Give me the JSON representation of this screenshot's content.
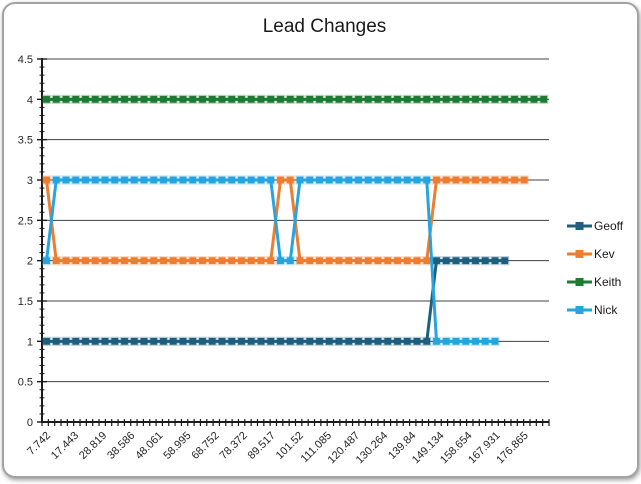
{
  "chart_data": {
    "type": "line",
    "title": "Lead Changes",
    "xlabel": "",
    "ylabel": "",
    "ylim": [
      0,
      4.5
    ],
    "grid": true,
    "legend_position": "right",
    "y_ticks": [
      0,
      0.5,
      1,
      1.5,
      2,
      2.5,
      3,
      3.5,
      4,
      4.5
    ],
    "y_tick_labels": [
      "0",
      "0.5",
      "1",
      "1.5",
      "2",
      "2.5",
      "3",
      "3.5",
      "4",
      "4.5"
    ],
    "x_tick_labels": [
      "7.742",
      "17.443",
      "28.819",
      "38.586",
      "48.061",
      "58.995",
      "68.752",
      "78.372",
      "89.517",
      "101.52",
      "111.085",
      "120.487",
      "130.264",
      "139.84",
      "149.134",
      "158.654",
      "167.931",
      "176.865"
    ],
    "series": [
      {
        "name": "Geoff",
        "color": "#1E5F7E",
        "values": [
          1,
          1,
          1,
          1,
          1,
          1,
          1,
          1,
          1,
          1,
          1,
          1,
          1,
          1,
          1,
          1,
          1,
          1,
          1,
          1,
          1,
          1,
          1,
          1,
          1,
          1,
          1,
          1,
          1,
          1,
          1,
          1,
          1,
          1,
          1,
          1,
          1,
          1,
          1,
          1,
          2,
          2,
          2,
          2,
          2,
          2,
          2,
          2
        ]
      },
      {
        "name": "Kev",
        "color": "#ED7D31",
        "values": [
          3,
          2,
          2,
          2,
          2,
          2,
          2,
          2,
          2,
          2,
          2,
          2,
          2,
          2,
          2,
          2,
          2,
          2,
          2,
          2,
          2,
          2,
          2,
          2,
          3,
          3,
          2,
          2,
          2,
          2,
          2,
          2,
          2,
          2,
          2,
          2,
          2,
          2,
          2,
          2,
          3,
          3,
          3,
          3,
          3,
          3,
          3,
          3,
          3,
          3
        ]
      },
      {
        "name": "Keith",
        "color": "#1E7B34",
        "values": [
          4,
          4,
          4,
          4,
          4,
          4,
          4,
          4,
          4,
          4,
          4,
          4,
          4,
          4,
          4,
          4,
          4,
          4,
          4,
          4,
          4,
          4,
          4,
          4,
          4,
          4,
          4,
          4,
          4,
          4,
          4,
          4,
          4,
          4,
          4,
          4,
          4,
          4,
          4,
          4,
          4,
          4,
          4,
          4,
          4,
          4,
          4,
          4,
          4,
          4,
          4,
          4
        ]
      },
      {
        "name": "Nick",
        "color": "#27A4DE",
        "values": [
          2,
          3,
          3,
          3,
          3,
          3,
          3,
          3,
          3,
          3,
          3,
          3,
          3,
          3,
          3,
          3,
          3,
          3,
          3,
          3,
          3,
          3,
          3,
          3,
          2,
          2,
          3,
          3,
          3,
          3,
          3,
          3,
          3,
          3,
          3,
          3,
          3,
          3,
          3,
          3,
          1,
          1,
          1,
          1,
          1,
          1,
          1
        ]
      }
    ]
  }
}
